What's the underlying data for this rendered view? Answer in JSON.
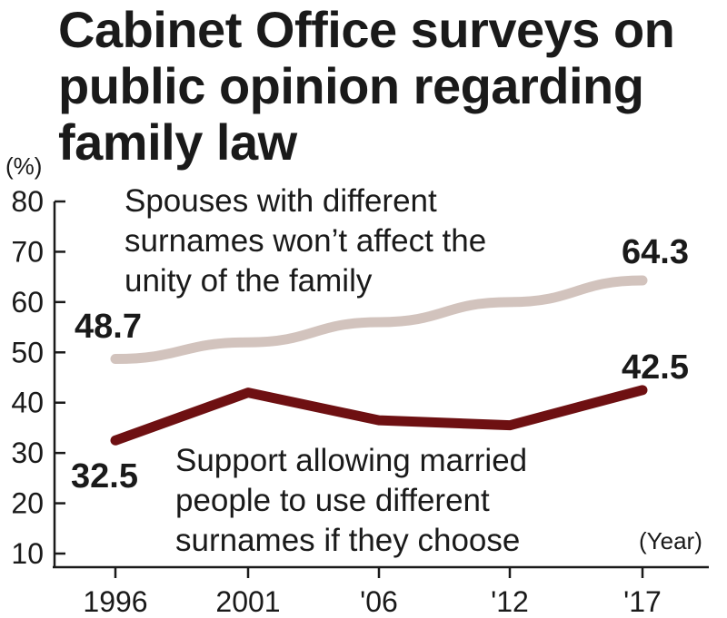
{
  "title_lines": [
    "Cabinet Office surveys on",
    "public opinion regarding",
    "family law"
  ],
  "chart_data": {
    "type": "line",
    "title": "Cabinet Office surveys on public opinion regarding family law",
    "categories": [
      "1996",
      "2001",
      "'06",
      "'12",
      "'17"
    ],
    "x_axis_label": "(Year)",
    "y_axis_label": "(%)",
    "y_ticks": [
      "80",
      "70",
      "60",
      "50",
      "40",
      "30",
      "20",
      "10"
    ],
    "ylim": [
      10,
      80
    ],
    "grid": false,
    "series": [
      {
        "label_lines": [
          "Spouses with different",
          "surnames won’t affect the",
          "unity of the family"
        ],
        "values": [
          48.7,
          52,
          56,
          60,
          64.3
        ],
        "color": "#d2c3bd",
        "start_label": "48.7",
        "end_label": "64.3"
      },
      {
        "label_lines": [
          "Support allowing married",
          "people to use different",
          "surnames if they choose"
        ],
        "values": [
          32.5,
          42,
          36.5,
          35.5,
          42.5
        ],
        "color": "#6e1012",
        "start_label": "32.5",
        "end_label": "42.5"
      }
    ]
  }
}
